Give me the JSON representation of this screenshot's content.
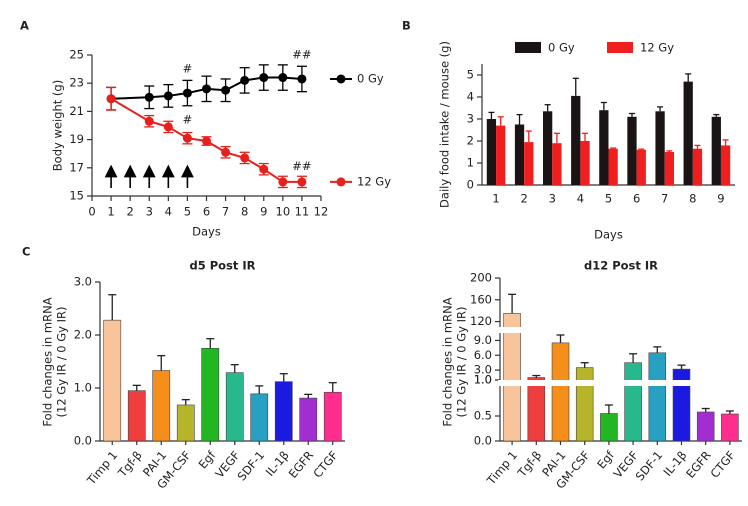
{
  "chart_data": [
    {
      "type": "line",
      "panel_label": "A",
      "x_label": "Days",
      "y_label": "Body weight  (g)",
      "x": [
        1,
        3,
        4,
        5,
        6,
        7,
        8,
        9,
        10,
        11
      ],
      "xlim": [
        0,
        12
      ],
      "xticks": [
        0,
        1,
        2,
        3,
        4,
        5,
        6,
        7,
        8,
        9,
        10,
        11,
        12
      ],
      "ylim": [
        15,
        25
      ],
      "yticks": [
        15,
        17,
        19,
        21,
        23,
        25
      ],
      "series": [
        {
          "name": "0 Gy",
          "color": "#000000",
          "values": [
            21.9,
            22.0,
            22.1,
            22.3,
            22.6,
            22.5,
            23.2,
            23.4,
            23.4,
            23.3
          ],
          "errors": [
            0.8,
            0.8,
            0.8,
            0.9,
            0.9,
            0.8,
            0.9,
            0.9,
            0.9,
            0.9
          ]
        },
        {
          "name": "12 Gy",
          "color": "#e8201c",
          "values": [
            21.9,
            20.3,
            19.9,
            19.1,
            18.9,
            18.1,
            17.7,
            16.9,
            16.0,
            16.0
          ],
          "errors": [
            0.8,
            0.4,
            0.4,
            0.4,
            0.3,
            0.4,
            0.4,
            0.4,
            0.4,
            0.4
          ]
        }
      ],
      "annotations": [
        {
          "text": "#",
          "x": 5,
          "y": 24.0
        },
        {
          "text": "#",
          "x": 5,
          "y": 20.4
        },
        {
          "text": "##",
          "x": 11,
          "y": 25.0
        },
        {
          "text": "##",
          "x": 11,
          "y": 17.1
        }
      ],
      "arrow_days": [
        1,
        2,
        3,
        4,
        5
      ]
    },
    {
      "type": "grouped_bar",
      "panel_label": "B",
      "x_label": "Days",
      "y_label": "Daily food intake / mouse (g)",
      "categories": [
        "1",
        "2",
        "3",
        "4",
        "5",
        "6",
        "7",
        "8",
        "9"
      ],
      "ylim": [
        0,
        5.5
      ],
      "yticks": [
        0,
        1,
        2,
        3,
        4,
        5
      ],
      "series": [
        {
          "name": "0 Gy",
          "color": "#1a1414",
          "values": [
            3.0,
            2.75,
            3.35,
            4.05,
            3.4,
            3.1,
            3.35,
            4.7,
            3.1
          ],
          "errors": [
            0.3,
            0.45,
            0.3,
            0.8,
            0.35,
            0.15,
            0.2,
            0.35,
            0.1
          ]
        },
        {
          "name": "12 Gy",
          "color": "#f01e1e",
          "values": [
            2.7,
            1.95,
            1.9,
            2.0,
            1.65,
            1.6,
            1.5,
            1.65,
            1.8
          ],
          "errors": [
            0.4,
            0.5,
            0.45,
            0.35,
            0.03,
            0.03,
            0.05,
            0.15,
            0.25
          ]
        }
      ]
    },
    {
      "type": "bar",
      "panel_label": "C",
      "title": "d5 Post IR",
      "y_label": [
        "Fold changes in mRNA",
        "(12 Gy IR / 0 Gy IR)"
      ],
      "categories": [
        "Timp 1",
        "Tgf-β",
        "PAI-1",
        "GM-CSF",
        "Egf",
        "VEGF",
        "SDF-1",
        "IL-1β",
        "EGFR",
        "CTGF"
      ],
      "colors": [
        "#f7c49c",
        "#ee3e3e",
        "#f68e1c",
        "#b6b42a",
        "#22b622",
        "#28b88e",
        "#28a0c2",
        "#1a1ae0",
        "#a22ed2",
        "#ff2e8e"
      ],
      "values": [
        2.28,
        0.95,
        1.33,
        0.68,
        1.75,
        1.29,
        0.89,
        1.12,
        0.81,
        0.92
      ],
      "errors": [
        0.48,
        0.1,
        0.28,
        0.1,
        0.18,
        0.15,
        0.15,
        0.15,
        0.07,
        0.18
      ],
      "ylim": [
        0,
        3.0
      ],
      "yticks": [
        {
          "value": 0,
          "label": "0.0"
        },
        {
          "value": 1,
          "label": "1.0"
        },
        {
          "value": 2,
          "label": "2.0"
        },
        {
          "value": 3,
          "label": "3.0"
        }
      ]
    },
    {
      "type": "broken_bar",
      "title": "d12 Post IR",
      "y_label": [
        "Fold changes in mRNA",
        "(12 Gy IR / 0 Gy IR)"
      ],
      "categories": [
        "Timp 1",
        "Tgf-β",
        "PAI-1",
        "GM-CSF",
        "Egf",
        "VEGF",
        "SDF-1",
        "IL-1β",
        "EGFR",
        "CTGF"
      ],
      "colors": [
        "#f7c49c",
        "#ee3e3e",
        "#f68e1c",
        "#b6b42a",
        "#22b622",
        "#28b88e",
        "#28a0c2",
        "#1a1ae0",
        "#a22ed2",
        "#ff2e8e"
      ],
      "values": [
        135,
        1.5,
        8.5,
        3.5,
        0.55,
        4.5,
        6.5,
        3.2,
        0.58,
        0.54
      ],
      "errors": [
        35,
        0.4,
        1.6,
        1.0,
        0.17,
        1.8,
        1.2,
        0.8,
        0.07,
        0.06
      ],
      "y_segments": [
        {
          "ylim": [
            0,
            1.1
          ],
          "yticks": [
            {
              "value": 0,
              "label": "0.0"
            },
            {
              "value": 0.5,
              "label": "0.5"
            },
            {
              "value": 1,
              "label": "1.0"
            }
          ]
        },
        {
          "ylim": [
            1.0,
            10.5
          ],
          "yticks": [
            {
              "value": 1,
              "label": "1.0"
            },
            {
              "value": 3,
              "label": "3.0"
            },
            {
              "value": 6,
              "label": "6.0"
            },
            {
              "value": 9,
              "label": "9.0"
            }
          ]
        },
        {
          "ylim": [
            110,
            200
          ],
          "yticks": [
            120,
            160,
            200
          ]
        }
      ]
    }
  ]
}
